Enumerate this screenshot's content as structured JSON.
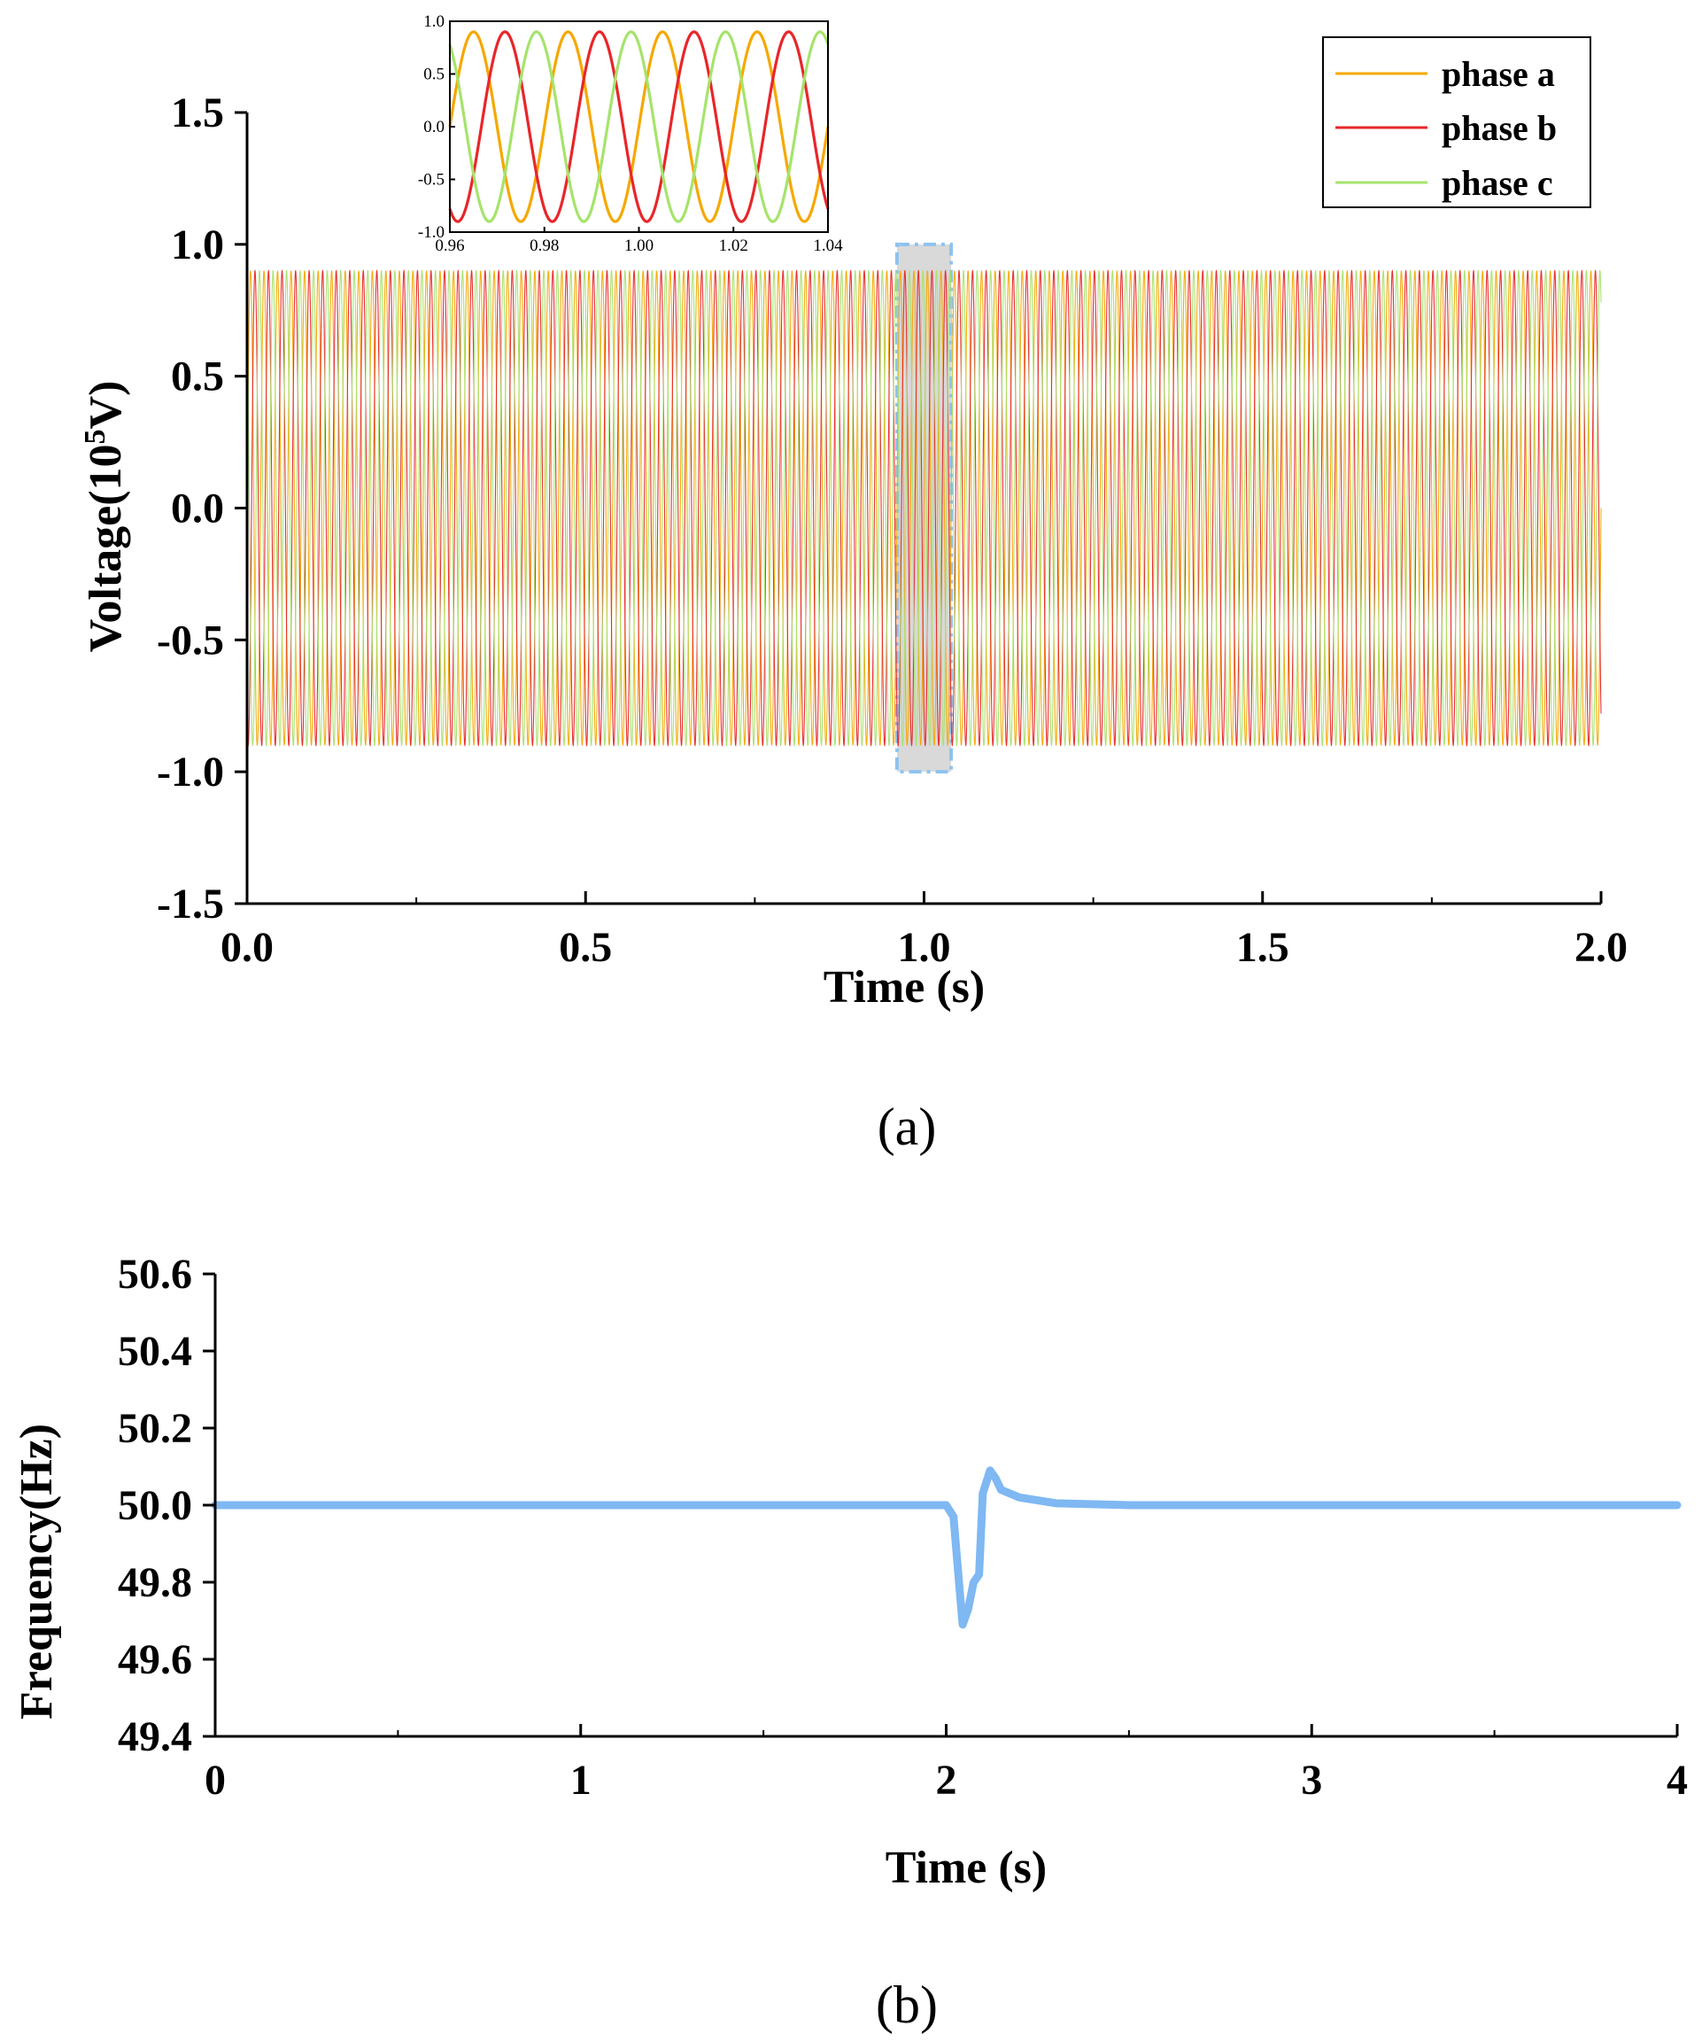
{
  "colors": {
    "phase_a": "#f5a800",
    "phase_b": "#e8262a",
    "phase_c": "#a6e36c",
    "frequency": "#7fb8f2",
    "highlight_fill": "#d9d9d9",
    "highlight_border": "#8ec3f0"
  },
  "panel_a_label": "(a)",
  "panel_b_label": "(b)",
  "chart_data": [
    {
      "id": "a",
      "type": "line",
      "title": "",
      "xlabel": "Time (s)",
      "ylabel_main": "Voltage(10",
      "ylabel_sup": "5",
      "ylabel_tail": "V)",
      "xlim": [
        0,
        2.0
      ],
      "ylim": [
        -1.5,
        1.5
      ],
      "xticks": [
        0,
        0.5,
        1.0,
        1.5,
        2.0
      ],
      "xtick_labels": [
        "0.0",
        "0.5",
        "1.0",
        "1.5",
        "2.0"
      ],
      "yticks": [
        -1.5,
        -1.0,
        -0.5,
        0.0,
        0.5,
        1.0,
        1.5
      ],
      "ytick_labels": [
        "-1.5",
        "-1.0",
        "-0.5",
        "0.0",
        "0.5",
        "1.0",
        "1.5"
      ],
      "frequency_hz": 50,
      "amplitude": 0.9,
      "series": [
        {
          "name": "phase a",
          "phase_deg": 0,
          "color_key": "phase_a"
        },
        {
          "name": "phase b",
          "phase_deg": -120,
          "color_key": "phase_b"
        },
        {
          "name": "phase c",
          "phase_deg": 120,
          "color_key": "phase_c"
        }
      ],
      "legend": [
        "phase a",
        "phase b",
        "phase c"
      ],
      "legend_position": "top-right",
      "highlight_region": {
        "x": [
          0.96,
          1.04
        ],
        "y": [
          -1.0,
          1.0
        ]
      },
      "inset": {
        "xlim": [
          0.96,
          1.04
        ],
        "ylim": [
          -1.0,
          1.0
        ],
        "xticks": [
          0.96,
          0.98,
          1.0,
          1.02,
          1.04
        ],
        "xtick_labels": [
          "0.96",
          "0.98",
          "1.00",
          "1.02",
          "1.04"
        ],
        "yticks": [
          -1.0,
          -0.5,
          0.0,
          0.5,
          1.0
        ],
        "ytick_labels": [
          "-1.0",
          "-0.5",
          "0.0",
          "0.5",
          "1.0"
        ]
      }
    },
    {
      "id": "b",
      "type": "line",
      "title": "",
      "xlabel": "Time (s)",
      "ylabel": "Frequency(Hz)",
      "xlim": [
        0,
        4
      ],
      "ylim": [
        49.4,
        50.6
      ],
      "xticks": [
        0,
        1,
        2,
        3,
        4
      ],
      "xtick_labels": [
        "0",
        "1",
        "2",
        "3",
        "4"
      ],
      "yticks": [
        49.4,
        49.6,
        49.8,
        50.0,
        50.2,
        50.4,
        50.6
      ],
      "ytick_labels": [
        "49.4",
        "49.6",
        "49.8",
        "50.0",
        "50.2",
        "50.4",
        "50.6"
      ],
      "series": [
        {
          "name": "frequency",
          "color_key": "frequency",
          "x": [
            0,
            1.0,
            2.0,
            2.02,
            2.035,
            2.045,
            2.06,
            2.075,
            2.09,
            2.1,
            2.12,
            2.135,
            2.15,
            2.2,
            2.3,
            2.5,
            3.0,
            4.0
          ],
          "y": [
            50.0,
            50.0,
            50.0,
            49.97,
            49.8,
            49.69,
            49.73,
            49.8,
            49.82,
            50.03,
            50.09,
            50.07,
            50.04,
            50.02,
            50.005,
            50.0,
            50.0,
            50.0
          ]
        }
      ]
    }
  ]
}
